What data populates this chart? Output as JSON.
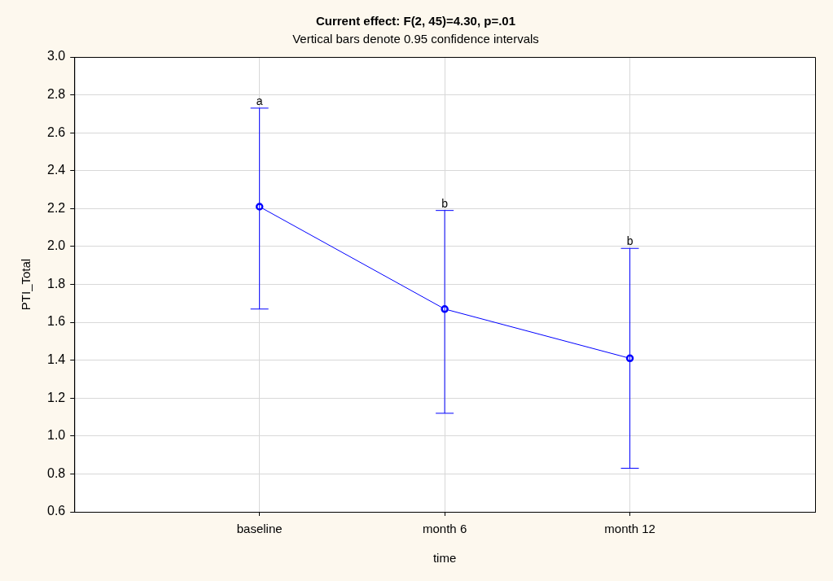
{
  "chart_data": {
    "type": "line",
    "title": "Current effect: F(2, 45)=4.30, p=.01",
    "subtitle": "Vertical bars denote 0.95 confidence intervals",
    "xlabel": "time",
    "ylabel": "PTI_Total",
    "categories": [
      "baseline",
      "month 6",
      "month 12"
    ],
    "series": [
      {
        "color": "#0000ff",
        "values": [
          2.21,
          1.67,
          1.41
        ],
        "errors": [
          [
            1.67,
            2.73
          ],
          [
            1.12,
            2.19
          ],
          [
            0.83,
            1.99
          ]
        ]
      }
    ],
    "annotations": [
      {
        "text": "a",
        "x": "baseline",
        "y": 2.73
      },
      {
        "text": "b",
        "x": "month 6",
        "y": 2.19
      },
      {
        "text": "b",
        "x": "month 12",
        "y": 1.99
      }
    ],
    "ylim": [
      0.6,
      3.0
    ],
    "yticks": [
      {
        "value": 0.6,
        "label": "0.6"
      },
      {
        "value": 0.8,
        "label": "0.8"
      },
      {
        "value": 1.0,
        "label": "1.0"
      },
      {
        "value": 1.2,
        "label": "1.2"
      },
      {
        "value": 1.4,
        "label": "1.4"
      },
      {
        "value": 1.6,
        "label": "1.6"
      },
      {
        "value": 1.8,
        "label": "1.8"
      },
      {
        "value": 2.0,
        "label": "2.0"
      },
      {
        "value": 2.2,
        "label": "2.2"
      },
      {
        "value": 2.4,
        "label": "2.4"
      },
      {
        "value": 2.6,
        "label": "2.6"
      },
      {
        "value": 2.8,
        "label": "2.8"
      },
      {
        "value": 3.0,
        "label": "3.0"
      }
    ],
    "grid": true,
    "legend": false,
    "marker": "circle",
    "line_style": "solid"
  }
}
